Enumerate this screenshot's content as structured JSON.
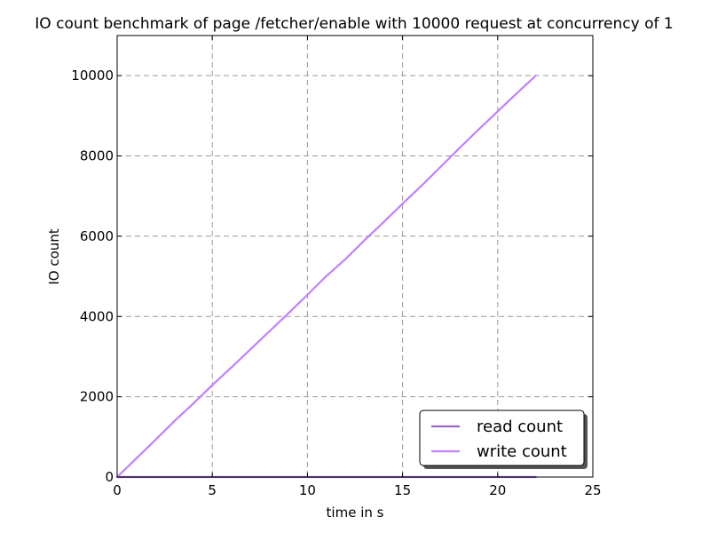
{
  "chart_data": {
    "type": "line",
    "title": "IO count benchmark of page /fetcher/enable with 10000 request at concurrency of 1",
    "xlabel": "time in s",
    "ylabel": "IO count",
    "xlim": [
      0,
      25
    ],
    "ylim": [
      0,
      11000
    ],
    "xticks": [
      "0",
      "5",
      "10",
      "15",
      "20",
      "25"
    ],
    "yticks": [
      "0",
      "2000",
      "4000",
      "6000",
      "8000",
      "10000"
    ],
    "grid": true,
    "legend_position": "lower-right",
    "series": [
      {
        "name": "read count",
        "color": "#9966cc",
        "x": [
          0,
          22
        ],
        "y": [
          0,
          0
        ]
      },
      {
        "name": "write count",
        "color": "#c080ff",
        "x": [
          0,
          1,
          2,
          3,
          4,
          5,
          6,
          7,
          8,
          9,
          10,
          11,
          12,
          13,
          14,
          15,
          16,
          17,
          18,
          19,
          20,
          21,
          22
        ],
        "y": [
          0,
          460,
          920,
          1390,
          1830,
          2290,
          2730,
          3180,
          3630,
          4080,
          4540,
          5010,
          5430,
          5900,
          6350,
          6810,
          7260,
          7730,
          8200,
          8660,
          9110,
          9560,
          10000
        ]
      }
    ]
  }
}
